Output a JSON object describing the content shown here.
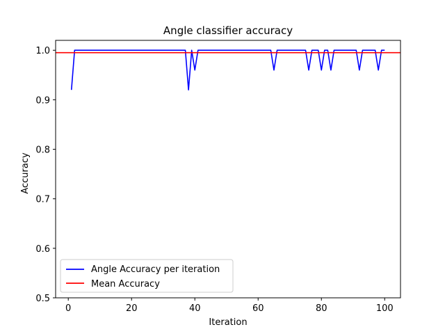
{
  "chart_data": {
    "type": "line",
    "title": "Angle classifier accuracy",
    "xlabel": "Iteration",
    "ylabel": "Accuracy",
    "xlim": [
      -4,
      105
    ],
    "ylim": [
      0.5,
      1.02
    ],
    "xticks": [
      0,
      20,
      40,
      60,
      80,
      100
    ],
    "yticks": [
      0.5,
      0.6,
      0.7,
      0.8,
      0.9,
      1.0
    ],
    "ytick_labels": [
      "0.5",
      "0.6",
      "0.7",
      "0.8",
      "0.9",
      "1.0"
    ],
    "grid": false,
    "legend_position": "lower-left",
    "series": [
      {
        "name": "Angle Accuracy per iteration",
        "color": "#0000ff",
        "x": [
          1,
          2,
          37,
          38,
          39,
          40,
          41,
          64,
          65,
          66,
          75,
          76,
          77,
          79,
          80,
          81,
          82,
          83,
          84,
          91,
          92,
          93,
          97,
          98,
          99,
          100
        ],
        "y": [
          0.92,
          1.0,
          1.0,
          0.92,
          1.0,
          0.96,
          1.0,
          1.0,
          0.96,
          1.0,
          1.0,
          0.96,
          1.0,
          1.0,
          0.96,
          1.0,
          1.0,
          0.96,
          1.0,
          1.0,
          0.96,
          1.0,
          1.0,
          0.96,
          1.0,
          1.0
        ]
      },
      {
        "name": "Mean Accuracy",
        "color": "#ff0000",
        "type": "hline",
        "y": 0.9952
      }
    ]
  }
}
